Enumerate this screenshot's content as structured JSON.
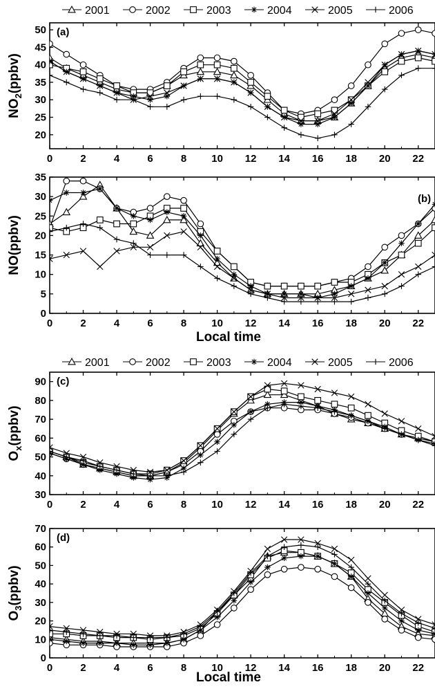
{
  "legend_top": [
    "2001",
    "2002",
    "2003",
    "2004",
    "2005",
    "2006"
  ],
  "legend_mid": [
    "2001",
    "2002",
    "2003",
    "2004",
    "2005",
    "2006"
  ],
  "markers": {
    "2001": "triangle",
    "2002": "circle",
    "2003": "square",
    "2004": "asterisk",
    "2005": "x",
    "2006": "plus"
  },
  "chart_data": [
    {
      "type": "line",
      "panel_label": "(a)",
      "ylabel": "NO2(ppbv)",
      "xlabel": "",
      "xlim": [
        0,
        23
      ],
      "ylim": [
        16,
        52
      ],
      "xticks": [
        0,
        2,
        4,
        6,
        8,
        10,
        12,
        14,
        16,
        18,
        20,
        22
      ],
      "yticks": [
        20,
        25,
        30,
        35,
        40,
        45,
        50
      ],
      "x": [
        0,
        1,
        2,
        3,
        4,
        5,
        6,
        7,
        8,
        9,
        10,
        11,
        12,
        13,
        14,
        15,
        16,
        17,
        18,
        19,
        20,
        21,
        22,
        23
      ],
      "series": [
        {
          "name": "2001",
          "values": [
            42,
            39,
            37,
            35,
            33,
            32,
            32,
            34,
            37,
            38,
            38,
            37,
            34,
            30,
            26,
            24,
            24,
            25,
            29,
            34,
            39,
            42,
            43,
            42
          ]
        },
        {
          "name": "2002",
          "values": [
            46,
            43,
            40,
            37,
            34,
            33,
            33,
            35,
            39,
            42,
            42,
            41,
            37,
            32,
            27,
            26,
            27,
            30,
            34,
            40,
            46,
            49,
            50,
            49
          ]
        },
        {
          "name": "2003",
          "values": [
            40,
            39,
            38,
            36,
            34,
            32,
            32,
            34,
            38,
            40,
            40,
            39,
            35,
            31,
            27,
            25,
            26,
            27,
            30,
            34,
            38,
            41,
            42,
            41
          ]
        },
        {
          "name": "2004",
          "values": [
            41,
            38,
            36,
            34,
            32,
            31,
            30,
            31,
            34,
            36,
            36,
            35,
            32,
            28,
            25,
            23,
            23,
            25,
            29,
            34,
            40,
            43,
            44,
            43
          ]
        },
        {
          "name": "2005",
          "values": [
            41,
            38,
            36,
            34,
            32,
            30,
            31,
            32,
            34,
            36,
            36,
            35,
            32,
            28,
            25,
            24,
            24,
            26,
            30,
            35,
            40,
            43,
            44,
            43
          ]
        },
        {
          "name": "2006",
          "values": [
            37,
            35,
            33,
            32,
            30,
            30,
            28,
            28,
            30,
            31,
            31,
            30,
            28,
            25,
            22,
            20,
            19,
            20,
            23,
            28,
            33,
            37,
            39,
            39
          ]
        }
      ]
    },
    {
      "type": "line",
      "panel_label": "(b)",
      "ylabel": "NO(ppbv)",
      "xlabel": "Local time",
      "xlim": [
        0,
        23
      ],
      "ylim": [
        0,
        35
      ],
      "xticks": [
        0,
        2,
        4,
        6,
        8,
        10,
        12,
        14,
        16,
        18,
        20,
        22
      ],
      "yticks": [
        0,
        5,
        10,
        15,
        20,
        25,
        30,
        35
      ],
      "x": [
        0,
        1,
        2,
        3,
        4,
        5,
        6,
        7,
        8,
        9,
        10,
        11,
        12,
        13,
        14,
        15,
        16,
        17,
        18,
        19,
        20,
        21,
        22,
        23
      ],
      "series": [
        {
          "name": "2001",
          "values": [
            23,
            26,
            30,
            33,
            27,
            21,
            20,
            24,
            24,
            18,
            13,
            9,
            6,
            5,
            5,
            5,
            5,
            6,
            7,
            9,
            11,
            15,
            20,
            24
          ]
        },
        {
          "name": "2002",
          "values": [
            22,
            34,
            34,
            32,
            27,
            26,
            27,
            30,
            29,
            23,
            16,
            12,
            8,
            7,
            7,
            7,
            7,
            8,
            9,
            12,
            17,
            20,
            23,
            27
          ]
        },
        {
          "name": "2003",
          "values": [
            22,
            21,
            22,
            24,
            23,
            23,
            25,
            27,
            27,
            21,
            16,
            12,
            8,
            7,
            7,
            7,
            7,
            8,
            8,
            10,
            13,
            15,
            18,
            22
          ]
        },
        {
          "name": "2004",
          "values": [
            29,
            31,
            31,
            32,
            27,
            25,
            24,
            26,
            25,
            20,
            14,
            10,
            7,
            5,
            5,
            5,
            4,
            5,
            7,
            9,
            13,
            18,
            23,
            28
          ]
        },
        {
          "name": "2005",
          "values": [
            14,
            15,
            16,
            12,
            16,
            17,
            17,
            20,
            21,
            17,
            12,
            9,
            6,
            5,
            4,
            4,
            4,
            4,
            5,
            6,
            7,
            10,
            12,
            15
          ]
        },
        {
          "name": "2006",
          "values": [
            21,
            22,
            23,
            22,
            19,
            18,
            15,
            15,
            15,
            12,
            9,
            7,
            5,
            4,
            3,
            3,
            3,
            3,
            3,
            4,
            5,
            7,
            10,
            12
          ]
        }
      ]
    },
    {
      "type": "line",
      "panel_label": "(c)",
      "ylabel": "Ox(ppbv)",
      "xlabel": "",
      "xlim": [
        0,
        23
      ],
      "ylim": [
        30,
        95
      ],
      "xticks": [
        0,
        2,
        4,
        6,
        8,
        10,
        12,
        14,
        16,
        18,
        20,
        22
      ],
      "yticks": [
        30,
        40,
        50,
        60,
        70,
        80,
        90
      ],
      "x": [
        0,
        1,
        2,
        3,
        4,
        5,
        6,
        7,
        8,
        9,
        10,
        11,
        12,
        13,
        14,
        15,
        16,
        17,
        18,
        19,
        20,
        21,
        22,
        23
      ],
      "series": [
        {
          "name": "2001",
          "values": [
            53,
            50,
            46,
            44,
            42,
            40,
            40,
            42,
            47,
            55,
            64,
            73,
            80,
            83,
            83,
            80,
            77,
            73,
            70,
            68,
            65,
            62,
            60,
            58
          ]
        },
        {
          "name": "2002",
          "values": [
            52,
            49,
            46,
            44,
            42,
            40,
            40,
            42,
            46,
            53,
            62,
            69,
            74,
            76,
            76,
            75,
            75,
            73,
            71,
            68,
            65,
            62,
            60,
            58
          ]
        },
        {
          "name": "2003",
          "values": [
            53,
            50,
            47,
            45,
            43,
            41,
            41,
            43,
            48,
            56,
            65,
            74,
            82,
            86,
            85,
            82,
            80,
            78,
            76,
            72,
            68,
            64,
            61,
            58
          ]
        },
        {
          "name": "2004",
          "values": [
            52,
            49,
            46,
            43,
            41,
            39,
            38,
            39,
            44,
            51,
            58,
            67,
            74,
            78,
            79,
            79,
            77,
            75,
            72,
            69,
            66,
            62,
            59,
            57
          ]
        },
        {
          "name": "2005",
          "values": [
            55,
            52,
            50,
            47,
            45,
            43,
            42,
            43,
            48,
            56,
            65,
            74,
            82,
            88,
            89,
            88,
            86,
            84,
            82,
            78,
            73,
            69,
            65,
            61
          ]
        },
        {
          "name": "2006",
          "values": [
            53,
            50,
            48,
            45,
            43,
            41,
            40,
            40,
            42,
            47,
            53,
            62,
            70,
            76,
            78,
            77,
            76,
            74,
            72,
            69,
            65,
            62,
            59,
            56
          ]
        }
      ]
    },
    {
      "type": "line",
      "panel_label": "(d)",
      "ylabel": "O3(ppbv)",
      "xlabel": "Local time",
      "xlim": [
        0,
        23
      ],
      "ylim": [
        0,
        70
      ],
      "xticks": [
        0,
        2,
        4,
        6,
        8,
        10,
        12,
        14,
        16,
        18,
        20,
        22
      ],
      "yticks": [
        0,
        10,
        20,
        30,
        40,
        50,
        60,
        70
      ],
      "x": [
        0,
        1,
        2,
        3,
        4,
        5,
        6,
        7,
        8,
        9,
        10,
        11,
        12,
        13,
        14,
        15,
        16,
        17,
        18,
        19,
        20,
        21,
        22,
        23
      ],
      "series": [
        {
          "name": "2001",
          "values": [
            11,
            10,
            9,
            9,
            8,
            8,
            8,
            8,
            10,
            15,
            25,
            34,
            43,
            55,
            57,
            57,
            55,
            51,
            44,
            32,
            24,
            17,
            13,
            12
          ]
        },
        {
          "name": "2002",
          "values": [
            8,
            7,
            7,
            7,
            6,
            6,
            6,
            6,
            8,
            12,
            18,
            27,
            37,
            45,
            48,
            49,
            48,
            44,
            38,
            30,
            21,
            15,
            11,
            10
          ]
        },
        {
          "name": "2003",
          "values": [
            13,
            13,
            12,
            12,
            11,
            11,
            10,
            11,
            12,
            16,
            24,
            34,
            45,
            54,
            58,
            57,
            55,
            51,
            46,
            37,
            30,
            23,
            17,
            14
          ]
        },
        {
          "name": "2004",
          "values": [
            10,
            9,
            8,
            8,
            8,
            7,
            7,
            8,
            10,
            15,
            22,
            31,
            41,
            49,
            54,
            55,
            55,
            51,
            44,
            35,
            27,
            20,
            15,
            13
          ]
        },
        {
          "name": "2005",
          "values": [
            17,
            16,
            15,
            14,
            13,
            13,
            12,
            12,
            14,
            18,
            26,
            36,
            47,
            59,
            64,
            64,
            62,
            59,
            53,
            43,
            34,
            26,
            21,
            18
          ]
        },
        {
          "name": "2006",
          "values": [
            15,
            14,
            13,
            12,
            12,
            11,
            11,
            11,
            13,
            17,
            25,
            35,
            46,
            55,
            60,
            61,
            60,
            56,
            49,
            40,
            31,
            24,
            19,
            16
          ]
        }
      ]
    }
  ]
}
